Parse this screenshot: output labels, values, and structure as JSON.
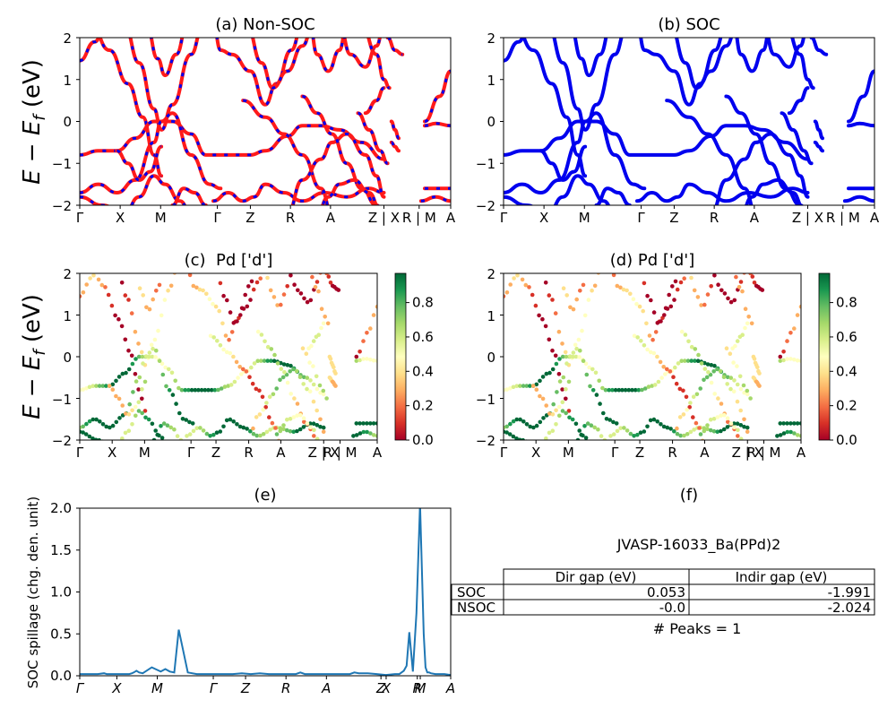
{
  "ylabel_main": "E − E",
  "ylabel_sub": "f",
  "ylabel_unit": " (eV)",
  "ticks_top": [
    "Γ",
    "X",
    "M",
    "Γ",
    "Z",
    "R",
    "A",
    "Z | X",
    "R | M",
    "A"
  ],
  "ticks_mid": [
    "Γ",
    "X",
    "M",
    "Γ",
    "Z",
    "R",
    "A",
    "Z | X",
    "R | M",
    "A"
  ],
  "ticks_spill": [
    "Γ",
    "X",
    "M",
    "Γ",
    "Z",
    "R",
    "A",
    "Z",
    "X",
    "R",
    "M",
    "A"
  ],
  "chart_data": [
    {
      "id": "a",
      "type": "line",
      "title": "(a) Non-SOC",
      "xlabel": "",
      "ylabel": "E − E_f (eV)",
      "ylim": [
        -2,
        2
      ],
      "yticks": [
        "2",
        "1",
        "0",
        "−1",
        "−2"
      ],
      "series_colors": [
        "#ff1a1a",
        "#0000ee"
      ],
      "series": [
        {
          "name": "Non-SOC bands",
          "style": "red solid with blue dashes"
        }
      ]
    },
    {
      "id": "b",
      "type": "line",
      "title": "(b) SOC",
      "xlabel": "",
      "ylabel": "",
      "ylim": [
        -2,
        2
      ],
      "yticks": [
        "2",
        "1",
        "0",
        "−1",
        "−2"
      ],
      "series_colors": [
        "#0000ee"
      ],
      "series": [
        {
          "name": "SOC bands",
          "style": "blue solid"
        }
      ]
    },
    {
      "id": "c",
      "type": "scatter",
      "title": "(c)  Pd ['d']",
      "xlabel": "",
      "ylabel": "E − E_f (eV)",
      "ylim": [
        -2,
        2
      ],
      "yticks": [
        "2",
        "1",
        "0",
        "−1",
        "−2"
      ],
      "colorbar": {
        "min": 0.0,
        "max": 0.97,
        "ticks": [
          "0.8",
          "0.6",
          "0.4",
          "0.2",
          "0.0"
        ],
        "cmap": "RdYlGn"
      }
    },
    {
      "id": "d",
      "type": "scatter",
      "title": "(d) Pd ['d']",
      "xlabel": "",
      "ylabel": "",
      "ylim": [
        -2,
        2
      ],
      "yticks": [
        "2",
        "1",
        "0",
        "−1",
        "−2"
      ],
      "colorbar": {
        "min": 0.0,
        "max": 0.97,
        "ticks": [
          "0.8",
          "0.6",
          "0.4",
          "0.2",
          "0.0"
        ],
        "cmap": "RdYlGn"
      }
    },
    {
      "id": "e",
      "type": "line",
      "title": "(e)",
      "xlabel": "",
      "ylabel": "SOC spillage (chg. den. unit)",
      "ylim": [
        0,
        2.0
      ],
      "yticks": [
        "2.0",
        "1.5",
        "1.0",
        "0.5",
        "0.0"
      ],
      "x": [
        0,
        10,
        20,
        27,
        30,
        35,
        40,
        45,
        48,
        50,
        52,
        55,
        58,
        60,
        63,
        66,
        70,
        80,
        90,
        95,
        100,
        105,
        110,
        120,
        130,
        140,
        150,
        160,
        170,
        180,
        190,
        200,
        210,
        220,
        230,
        240,
        245,
        250,
        260,
        270,
        280,
        290,
        300,
        305,
        310,
        315,
        320,
        330,
        340,
        350,
        355,
        360,
        363,
        366,
        370,
        374,
        378,
        382,
        384,
        386,
        388,
        390,
        395,
        400,
        405,
        412
      ],
      "values": [
        0.02,
        0.02,
        0.02,
        0.03,
        0.02,
        0.02,
        0.02,
        0.02,
        0.02,
        0.02,
        0.02,
        0.02,
        0.03,
        0.04,
        0.06,
        0.04,
        0.03,
        0.1,
        0.05,
        0.08,
        0.05,
        0.04,
        0.55,
        0.04,
        0.02,
        0.02,
        0.02,
        0.02,
        0.02,
        0.03,
        0.02,
        0.03,
        0.02,
        0.02,
        0.02,
        0.02,
        0.04,
        0.02,
        0.02,
        0.02,
        0.02,
        0.02,
        0.02,
        0.04,
        0.03,
        0.03,
        0.03,
        0.02,
        0.01,
        0.02,
        0.02,
        0.06,
        0.12,
        0.52,
        0.05,
        0.75,
        2.05,
        0.5,
        0.1,
        0.04,
        0.04,
        0.03,
        0.02,
        0.02,
        0.02,
        0.01
      ]
    },
    {
      "id": "f",
      "type": "table",
      "title": "(f)",
      "subtitle": "JVASP-16033_Ba(PPd)2",
      "columns": [
        "Dir gap (eV)",
        "Indir gap (eV)"
      ],
      "rows": [
        {
          "label": "SOC",
          "cells": [
            "0.053",
            "-1.991"
          ]
        },
        {
          "label": "NSOC",
          "cells": [
            "-0.0",
            "-2.024"
          ]
        }
      ],
      "footer": "# Peaks = 1"
    }
  ]
}
